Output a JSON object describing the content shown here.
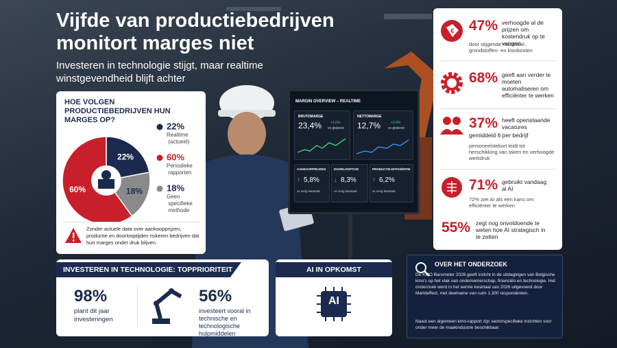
{
  "header": {
    "title": "Vijfde van productiebedrijven monitort marges niet",
    "subtitle": "Investeren in technologie stijgt, maar realtime winstgevendheid blijft achter"
  },
  "chart_data": {
    "type": "pie",
    "title": "HOE VOLGEN PRODUCTIEBEDRIJVEN HUN MARGES OP?",
    "categories": [
      "Realtime (actueel)",
      "Periodieke rapporten",
      "Geen specifieke methode"
    ],
    "values": [
      22,
      60,
      18
    ],
    "value_labels": [
      "22%",
      "60%",
      "18%"
    ],
    "colors": [
      "#1b2a4e",
      "#c8202b",
      "#8a8a8a"
    ]
  },
  "warning": "Zonder actuele data over aankoopprijzen, productie en doorlooptijden riskeren bedrijven dat hun marges onder druk blijven.",
  "screen": {
    "title": "MARGIN OVERVIEW – REALTIME",
    "metrics": [
      {
        "label": "BRUTOMARGE",
        "value": "23,4%",
        "change": "+1,6%",
        "note": "vs gisteren"
      },
      {
        "label": "NETTOMARGE",
        "value": "12,7%",
        "change": "+0,9%",
        "note": "vs gisteren"
      },
      {
        "label": "AANKOOPPRIJZEN",
        "value": "5,8%",
        "note": "vs vorig kwartaal"
      },
      {
        "label": "DOORLOOPTIJD",
        "value": "8,3%",
        "note": "vs vorig kwartaal"
      },
      {
        "label": "PRODUCTIE-EFFICIËNTIE",
        "value": "6,2%",
        "note": "vs vorig kwartaal"
      }
    ]
  },
  "stats": [
    {
      "value": "47%",
      "text": "verhoogde al de prijzen om kostendruk op te vangen",
      "detail": "door stijgende materiaal-, grondstoffen- en loonkosten"
    },
    {
      "value": "68%",
      "text": "geeft aan verder te moeten automatiseren om efficiënter te werken"
    },
    {
      "value": "37%",
      "text": "heeft openstaande vacatures",
      "detail": "gemiddeld 6 per bedrijf",
      "note": "personeelstekort leidt tot herschikking van taken en verhoogde werkdruk"
    },
    {
      "value": "71%",
      "text": "gebruikt vandaag al AI",
      "detail": "72% ziet AI als een kans om efficiënter te werken"
    },
    {
      "value": "55%",
      "text": "zegt nog onvoldoende te weten hoe AI strategisch in te zetten"
    }
  ],
  "investment": {
    "title": "INVESTEREN IN TECHNOLOGIE: TOPPRIORITEIT",
    "items": [
      {
        "value": "98%",
        "text": "plant dit jaar investeringen"
      },
      {
        "value": "56%",
        "text": "investeert vooral in technische en technologische hulpmiddelen"
      }
    ]
  },
  "ai": {
    "title": "AI IN OPKOMST",
    "icon_text": "AI"
  },
  "research": {
    "title": "OVER HET ONDERZOEK",
    "paragraphs": [
      "De KMO Barometer 2026 geeft inzicht in de uitdagingen van Belgische kmo's op het vlak van ondernemerschap, financiën en technologie. Het onderzoek werd in het eerste kwartaal van 2026 uitgevoerd door Markteffect, met deelname van ruim 1.300 respondenten.",
      "Naast een algemeen kmo-rapport zijn sectorspecifieke inzichten voor onder meer de maakindustrie beschikbaar."
    ]
  }
}
